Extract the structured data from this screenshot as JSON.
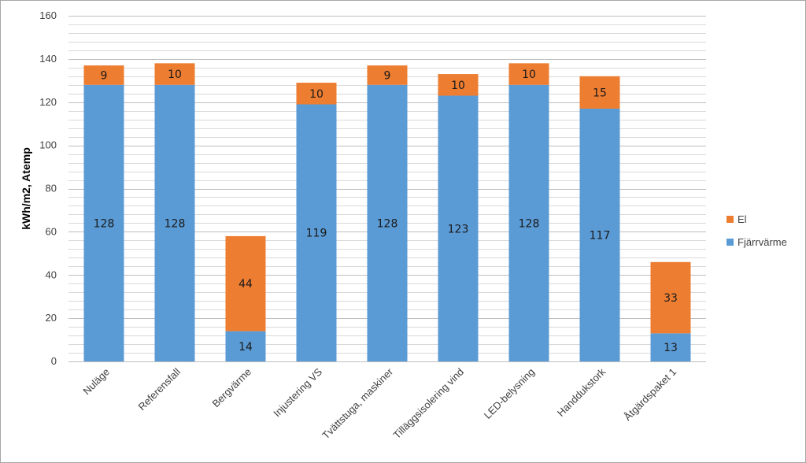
{
  "chart_data": {
    "type": "bar",
    "stacked": true,
    "categories": [
      "Nuläge",
      "Referensfall",
      "Bergvärme",
      "Injustering VS",
      "Tvättstuga, maskiner",
      "Tilläggsisolering vind",
      "LED-belysning",
      "Handdukstork",
      "Åtgärdspaket 1"
    ],
    "series": [
      {
        "name": "Fjärrvärme",
        "color": "#5b9bd5",
        "values": [
          128,
          128,
          14,
          119,
          128,
          123,
          128,
          117,
          13
        ]
      },
      {
        "name": "El",
        "color": "#ed7d31",
        "values": [
          9,
          10,
          44,
          10,
          9,
          10,
          10,
          15,
          33
        ]
      }
    ],
    "ylabel": "kWh/m2, Atemp",
    "xlabel": "",
    "ylim": [
      0,
      160
    ],
    "yticks": [
      0,
      20,
      40,
      60,
      80,
      100,
      120,
      140,
      160
    ],
    "grid": true,
    "legend_position": "right"
  }
}
